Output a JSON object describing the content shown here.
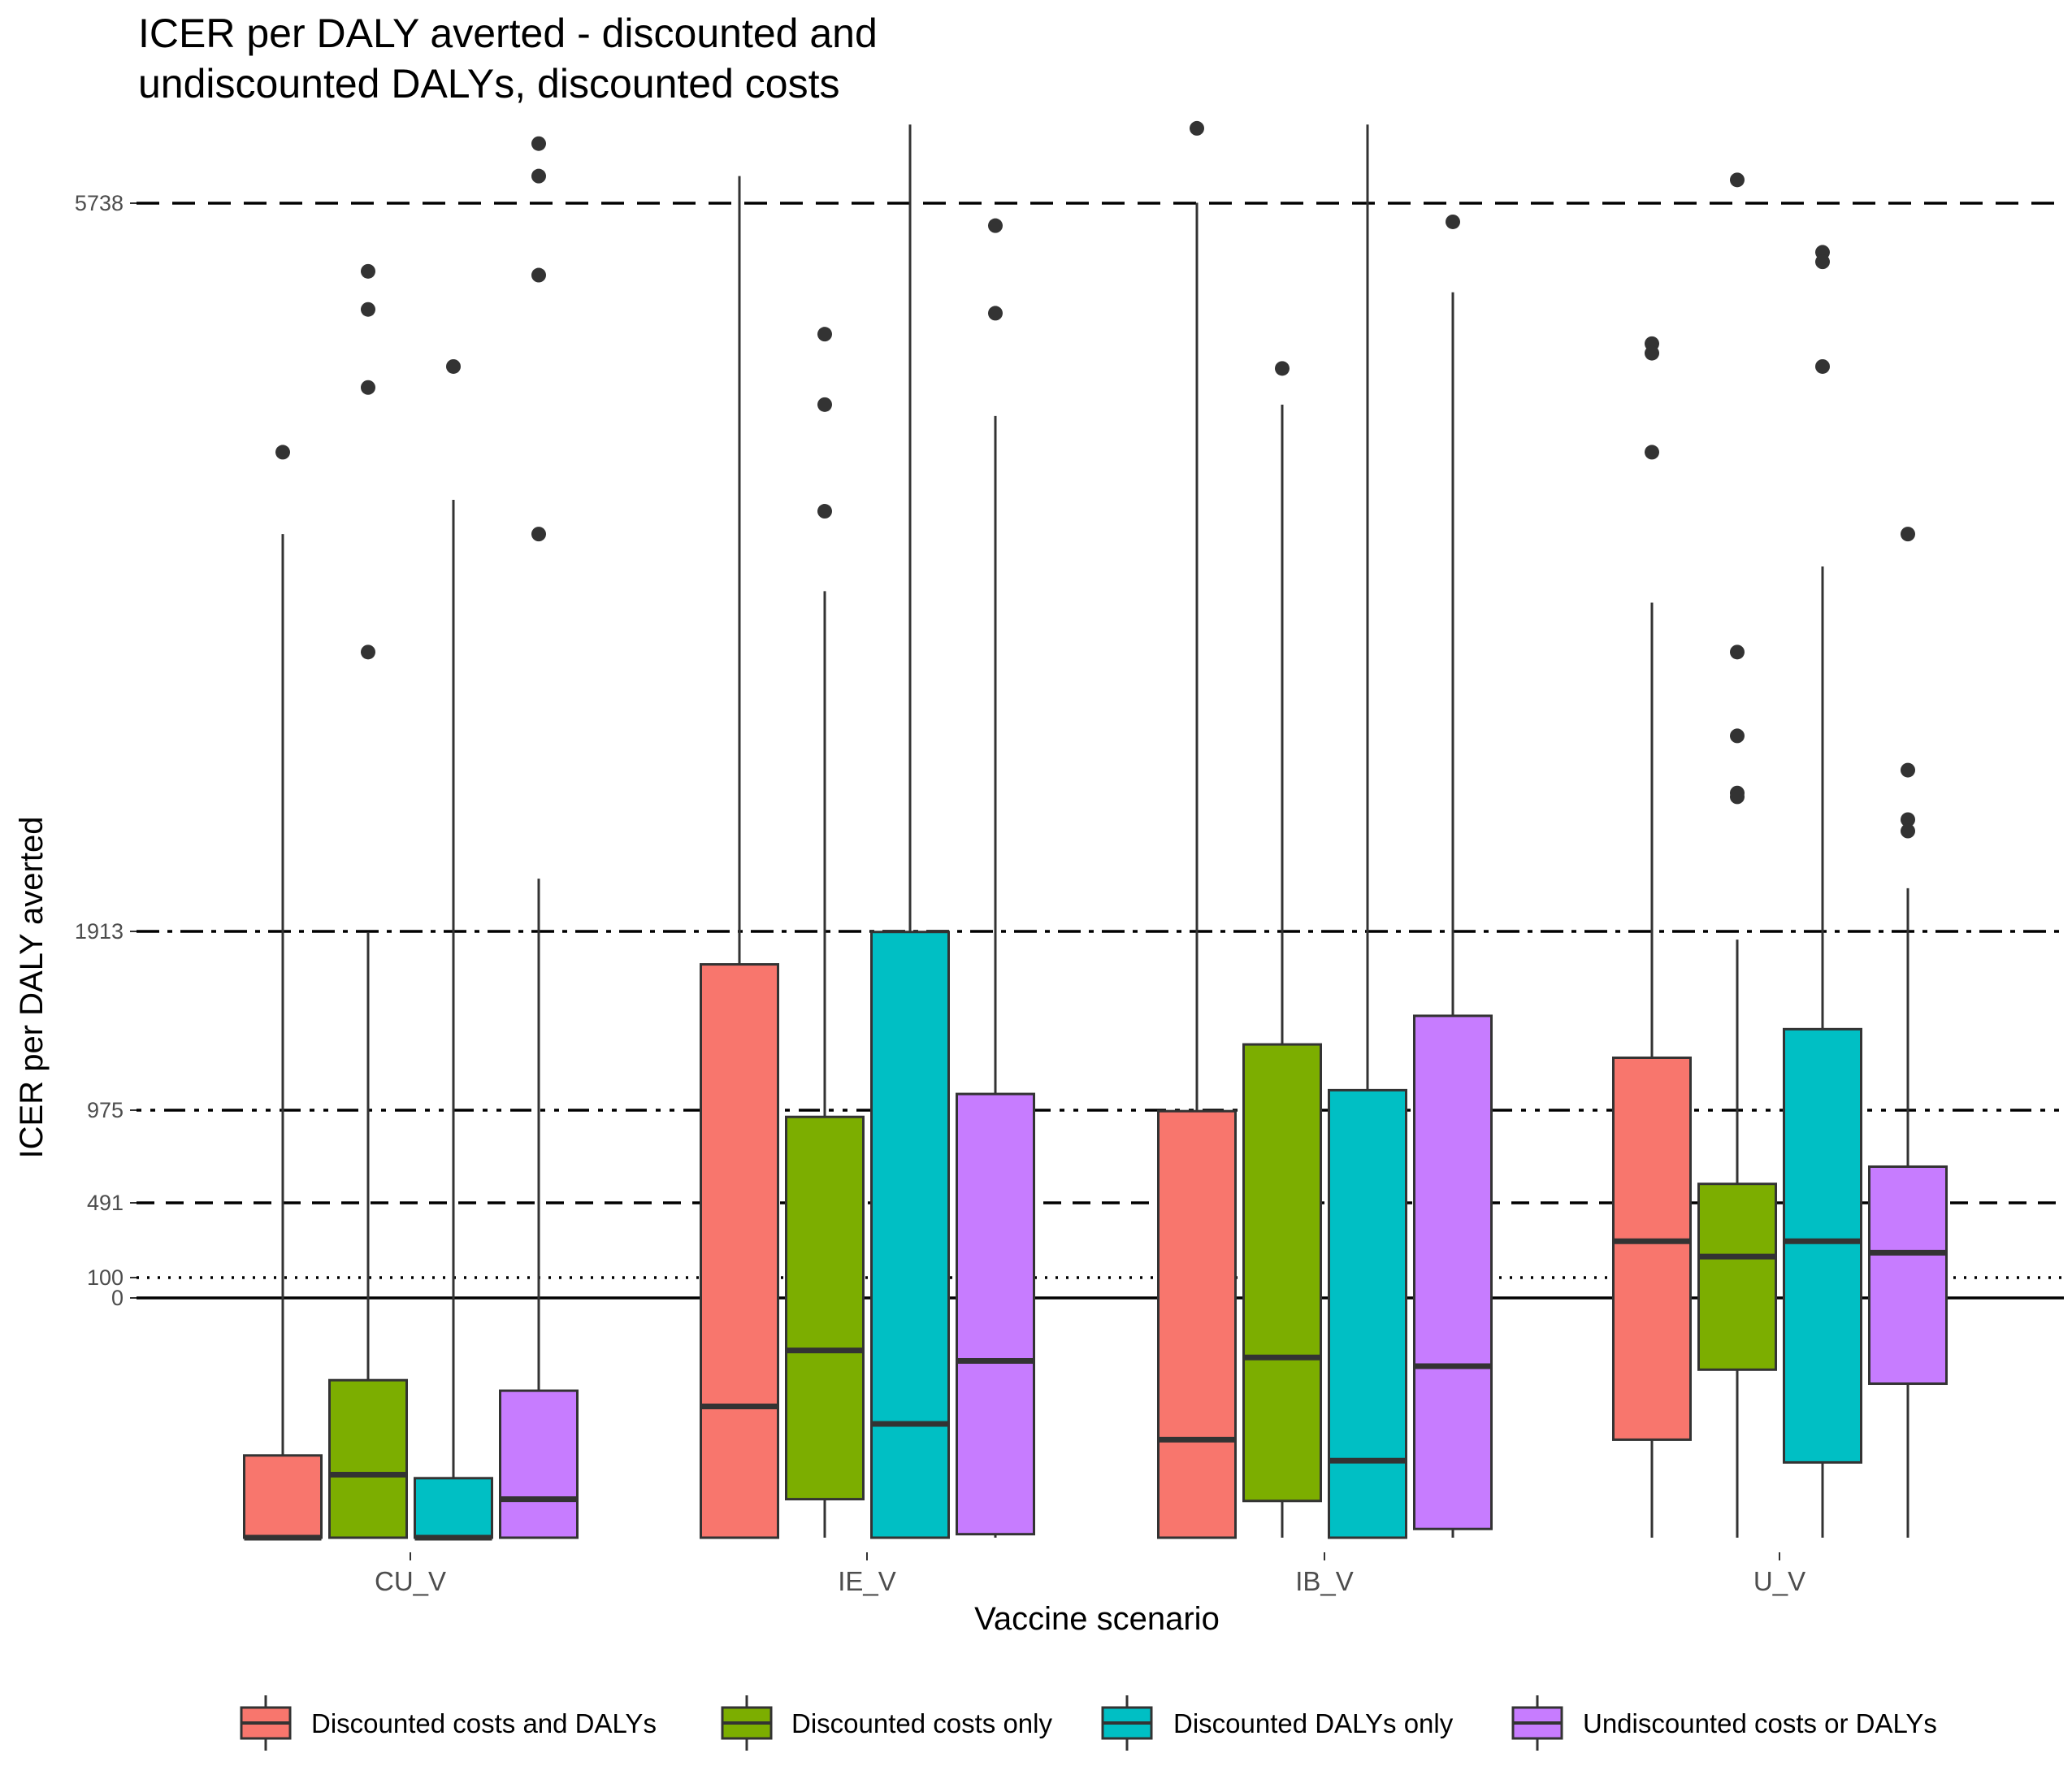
{
  "chart_data": {
    "type": "box",
    "title_lines": [
      "ICER per DALY averted - discounted and",
      "undiscounted DALYs, discounted costs"
    ],
    "xlabel": "Vaccine scenario",
    "ylabel": "ICER per DALY averted",
    "y_ticks": [
      0,
      100,
      491,
      975,
      1913,
      5738
    ],
    "reference_lines": [
      {
        "value": 0,
        "style": "solid"
      },
      {
        "value": 100,
        "style": "dotted"
      },
      {
        "value": 491,
        "style": "dashed"
      },
      {
        "value": 975,
        "style": "dot-dash-double"
      },
      {
        "value": 1913,
        "style": "dash-dot"
      },
      {
        "value": 5738,
        "style": "long-dashed"
      }
    ],
    "categories": [
      "CU_V",
      "IE_V",
      "IB_V",
      "U_V"
    ],
    "series": [
      {
        "name": "Discounted costs and DALYs",
        "color": "#F8766D",
        "boxes": [
          {
            "category": "CU_V",
            "lower_whisker": -1370,
            "q1": -1370,
            "median": -1370,
            "q3": -900,
            "upper_whisker": 4000,
            "outliers": [
              4430
            ]
          },
          {
            "category": "IE_V",
            "lower_whisker": -1370,
            "q1": -1370,
            "median": -620,
            "q3": 1740,
            "upper_whisker": 5880,
            "outliers": []
          },
          {
            "category": "IB_V",
            "lower_whisker": -1370,
            "q1": -1370,
            "median": -810,
            "q3": 970,
            "upper_whisker": 5740,
            "outliers": [
              6130
            ]
          },
          {
            "category": "U_V",
            "lower_whisker": -1370,
            "q1": -810,
            "median": 290,
            "q3": 1250,
            "upper_whisker": 3640,
            "outliers": [
              5000,
              4950,
              4430
            ]
          }
        ]
      },
      {
        "name": "Discounted costs only",
        "color": "#7CAE00",
        "boxes": [
          {
            "category": "CU_V",
            "lower_whisker": -1370,
            "q1": -1370,
            "median": -1010,
            "q3": -470,
            "upper_whisker": 1910,
            "outliers": [
              5380,
              5180,
              4770,
              3380
            ]
          },
          {
            "category": "IE_V",
            "lower_whisker": -1370,
            "q1": -1150,
            "median": -300,
            "q3": 940,
            "upper_whisker": 3700,
            "outliers": [
              5050,
              4680,
              4120
            ]
          },
          {
            "category": "IB_V",
            "lower_whisker": -1370,
            "q1": -1160,
            "median": -340,
            "q3": 1320,
            "upper_whisker": 4680,
            "outliers": [
              4870
            ]
          },
          {
            "category": "U_V",
            "lower_whisker": -1370,
            "q1": -410,
            "median": 210,
            "q3": 590,
            "upper_whisker": 1870,
            "outliers": [
              5860,
              3380,
              2940,
              2640,
              2620
            ]
          }
        ]
      },
      {
        "name": "Discounted DALYs only",
        "color": "#00BFC4",
        "boxes": [
          {
            "category": "CU_V",
            "lower_whisker": -1370,
            "q1": -1370,
            "median": -1370,
            "q3": -1030,
            "upper_whisker": 4180,
            "outliers": [
              4880
            ]
          },
          {
            "category": "IE_V",
            "lower_whisker": -1370,
            "q1": -1370,
            "median": -720,
            "q3": 1910,
            "upper_whisker": 6150,
            "outliers": []
          },
          {
            "category": "IB_V",
            "lower_whisker": -1370,
            "q1": -1370,
            "median": -930,
            "q3": 1080,
            "upper_whisker": 6150,
            "outliers": []
          },
          {
            "category": "U_V",
            "lower_whisker": -1370,
            "q1": -940,
            "median": 290,
            "q3": 1400,
            "upper_whisker": 3830,
            "outliers": [
              5480,
              5430,
              4880
            ]
          }
        ]
      },
      {
        "name": "Undiscounted costs or DALYs",
        "color": "#C77CFF",
        "boxes": [
          {
            "category": "CU_V",
            "lower_whisker": -1370,
            "q1": -1370,
            "median": -1150,
            "q3": -530,
            "upper_whisker": 2190,
            "outliers": [
              6050,
              5880,
              5360,
              4000
            ]
          },
          {
            "category": "IE_V",
            "lower_whisker": -1370,
            "q1": -1350,
            "median": -360,
            "q3": 1060,
            "upper_whisker": 4620,
            "outliers": [
              5620,
              5160
            ]
          },
          {
            "category": "IB_V",
            "lower_whisker": -1370,
            "q1": -1320,
            "median": -390,
            "q3": 1470,
            "upper_whisker": 5270,
            "outliers": [
              5640
            ]
          },
          {
            "category": "U_V",
            "lower_whisker": -1370,
            "q1": -490,
            "median": 230,
            "q3": 680,
            "upper_whisker": 2140,
            "outliers": [
              4000,
              2760,
              2500,
              2440
            ]
          }
        ]
      }
    ],
    "legend": {
      "position": "bottom",
      "labels": [
        "Discounted costs and DALYs",
        "Discounted costs only",
        "Discounted DALYs only",
        "Undiscounted costs or DALYs"
      ]
    }
  }
}
